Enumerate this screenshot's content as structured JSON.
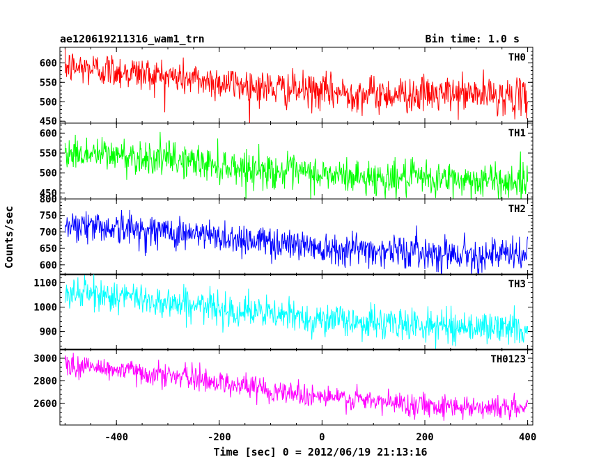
{
  "chart_data": {
    "type": "line",
    "title_left": "ae120619211316_wam1_trn",
    "title_right": "Bin time: 1.0 s",
    "xlabel": "Time [sec] 0 = 2012/06/19 21:13:16",
    "ylabel": "Counts/sec",
    "xlim": [
      -510,
      410
    ],
    "x_ticks": [
      "-400",
      "-200",
      "0",
      "200",
      "400"
    ],
    "x_tick_values": [
      -400,
      -200,
      0,
      200,
      400
    ],
    "x_range": [
      -500,
      400
    ],
    "bin_time": 1.0,
    "grid": false,
    "panels": [
      {
        "name": "TH0",
        "color": "#ff0000",
        "ylim": [
          445,
          640
        ],
        "y_ticks": [
          "450",
          "500",
          "550",
          "600"
        ],
        "y_tick_values": [
          450,
          500,
          550,
          600
        ],
        "trend": [
          [
            -500,
            590
          ],
          [
            -400,
            580
          ],
          [
            -300,
            565
          ],
          [
            -200,
            550
          ],
          [
            -100,
            535
          ],
          [
            0,
            525
          ],
          [
            100,
            520
          ],
          [
            200,
            518
          ],
          [
            300,
            520
          ],
          [
            400,
            510
          ]
        ],
        "noise_sd": 23
      },
      {
        "name": "TH1",
        "color": "#00ff00",
        "ylim": [
          435,
          625
        ],
        "y_ticks": [
          "450",
          "500",
          "550",
          "600"
        ],
        "y_tick_values": [
          450,
          500,
          550,
          600
        ],
        "trend": [
          [
            -500,
            550
          ],
          [
            -400,
            545
          ],
          [
            -300,
            535
          ],
          [
            -200,
            520
          ],
          [
            -100,
            505
          ],
          [
            0,
            495
          ],
          [
            100,
            488
          ],
          [
            200,
            485
          ],
          [
            300,
            482
          ],
          [
            400,
            478
          ]
        ],
        "noise_sd": 22
      },
      {
        "name": "TH2",
        "color": "#0000ff",
        "ylim": [
          570,
          800
        ],
        "y_ticks": [
          "600",
          "650",
          "700",
          "750",
          "800"
        ],
        "y_tick_values": [
          600,
          650,
          700,
          750,
          800
        ],
        "trend": [
          [
            -500,
            725
          ],
          [
            -400,
            712
          ],
          [
            -300,
            700
          ],
          [
            -200,
            685
          ],
          [
            -100,
            670
          ],
          [
            0,
            655
          ],
          [
            100,
            645
          ],
          [
            200,
            638
          ],
          [
            300,
            632
          ],
          [
            400,
            628
          ]
        ],
        "noise_sd": 25
      },
      {
        "name": "TH3",
        "color": "#00ffff",
        "ylim": [
          825,
          1135
        ],
        "y_ticks": [
          "900",
          "1000",
          "1100"
        ],
        "y_tick_values": [
          900,
          1000,
          1100
        ],
        "trend": [
          [
            -500,
            1060
          ],
          [
            -400,
            1045
          ],
          [
            -300,
            1020
          ],
          [
            -200,
            995
          ],
          [
            -100,
            970
          ],
          [
            0,
            950
          ],
          [
            100,
            935
          ],
          [
            200,
            925
          ],
          [
            300,
            918
          ],
          [
            400,
            910
          ]
        ],
        "noise_sd": 33
      },
      {
        "name": "TH0123",
        "color": "#ff00ff",
        "ylim": [
          2410,
          3080
        ],
        "y_ticks": [
          "2600",
          "2800",
          "3000"
        ],
        "y_tick_values": [
          2600,
          2800,
          3000
        ],
        "trend": [
          [
            -500,
            2940
          ],
          [
            -400,
            2900
          ],
          [
            -300,
            2850
          ],
          [
            -200,
            2790
          ],
          [
            -100,
            2720
          ],
          [
            0,
            2660
          ],
          [
            100,
            2615
          ],
          [
            200,
            2590
          ],
          [
            300,
            2570
          ],
          [
            400,
            2555
          ]
        ],
        "noise_sd": 52
      }
    ]
  }
}
